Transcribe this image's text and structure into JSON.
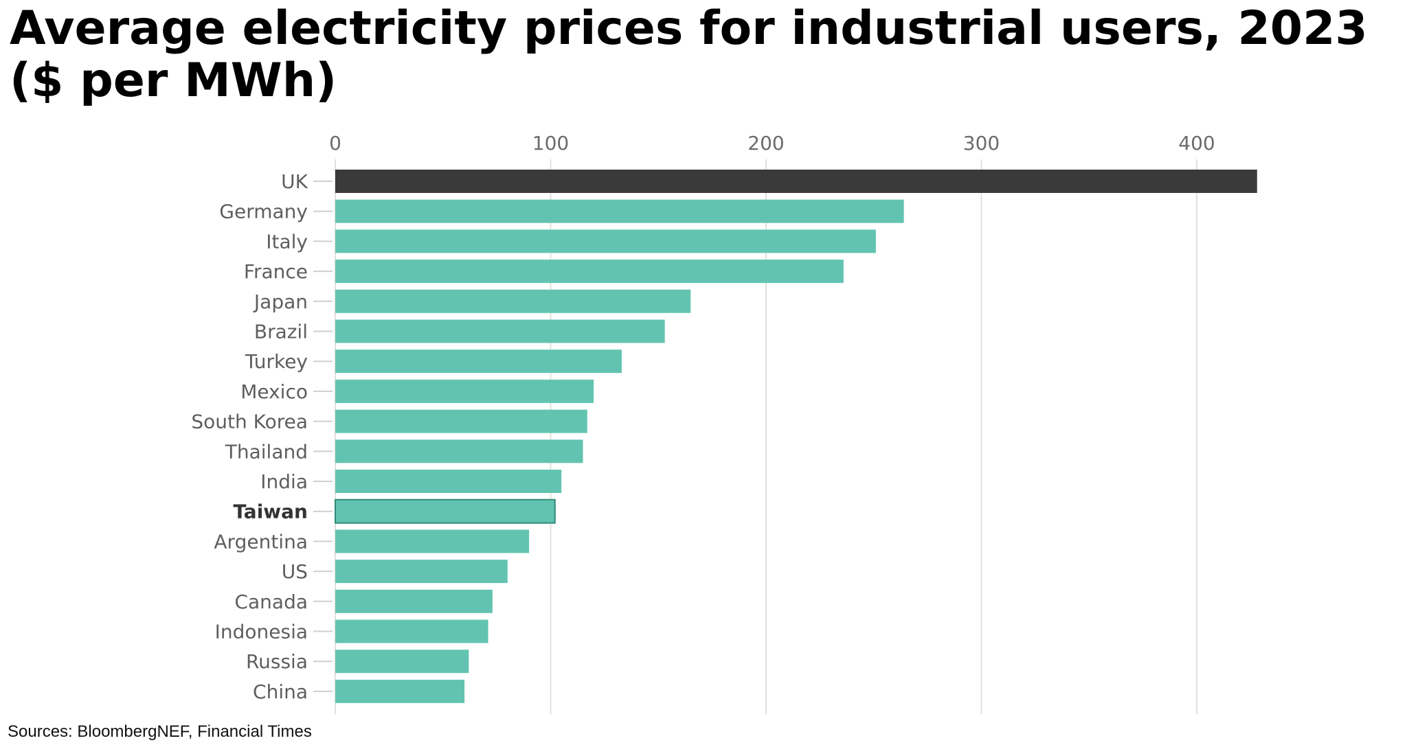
{
  "title": "Average electricity prices for industrial users, 2023 ($ per MWh)",
  "source": "Sources:  BloombergNEF, Financial Times",
  "chart_data": {
    "type": "bar",
    "orientation": "horizontal",
    "xlim": [
      0,
      430
    ],
    "grid": true,
    "xticks": [
      0,
      100,
      200,
      300,
      400
    ],
    "tick_labels": [
      "0",
      "100",
      "200",
      "300",
      "400"
    ],
    "categories": [
      "UK",
      "Germany",
      "Italy",
      "France",
      "Japan",
      "Brazil",
      "Turkey",
      "Mexico",
      "South Korea",
      "Thailand",
      "India",
      "Taiwan",
      "Argentina",
      "US",
      "Canada",
      "Indonesia",
      "Russia",
      "China"
    ],
    "values": [
      428,
      264,
      251,
      236,
      165,
      153,
      133,
      120,
      117,
      115,
      105,
      102,
      90,
      80,
      73,
      71,
      62,
      60
    ],
    "highlight_bold": "Taiwan",
    "colors": {
      "default": "#62c4b0",
      "UK": "#3a3a3a",
      "Taiwan_outline": "#2e8a78",
      "grid": "#e2e0dc",
      "tick_text": "#6b6b6b",
      "label_text": "#5e5e5e"
    }
  }
}
